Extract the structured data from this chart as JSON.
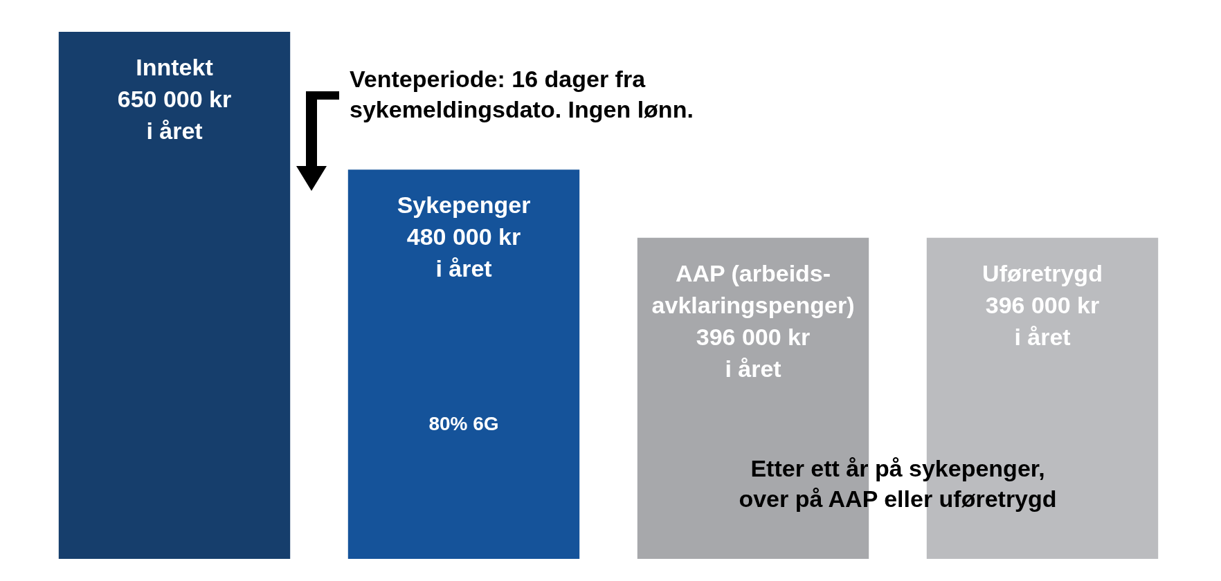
{
  "chart_data": {
    "type": "bar",
    "categories": [
      null,
      null,
      null,
      null
    ],
    "values": [
      650000,
      480000,
      396000,
      396000
    ],
    "colors": [
      "#163e6c",
      "#15539a",
      "#a7a8ab",
      "#bbbcbf"
    ],
    "value_labels": [
      "Inntekt\n650 000 kr\ni året",
      "Sykepenger\n480 000 kr\ni året",
      "AAP (arbeids-\navklaringspenger)\n396 000 kr\ni året",
      "Uføretrygd\n396 000 kr\ni året"
    ],
    "annotations": [
      "Venteperiode: 16 dager fra\nsykemeldingsdato. Ingen lønn.",
      "80% 6G",
      "Etter ett år på sykepenger,\nover på AAP eller uføretrygd"
    ],
    "grid": false
  }
}
